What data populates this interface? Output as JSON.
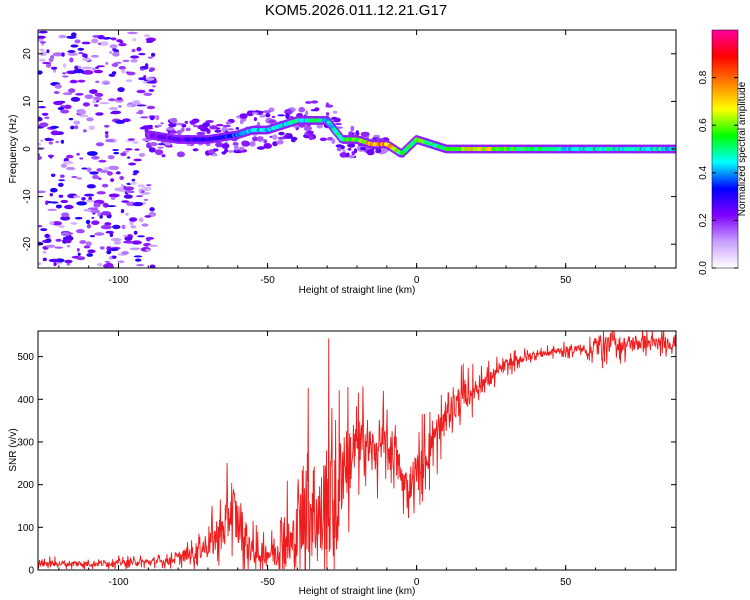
{
  "title": "KOM5.2026.011.12.21.G17",
  "chart_data": [
    {
      "type": "heatmap",
      "name": "spectrogram",
      "xlabel": "Height of straight line (km)",
      "ylabel": "Frequency (Hz)",
      "xlim": [
        -127,
        87
      ],
      "ylim": [
        -25,
        25
      ],
      "xticks": [
        -100,
        -50,
        0,
        50
      ],
      "yticks": [
        20,
        10,
        0,
        -10,
        -20
      ],
      "xtick_labels": [
        "-100",
        "-50",
        "0",
        "50"
      ],
      "ytick_labels": [
        "20",
        "10",
        "0",
        "-10",
        "-20"
      ],
      "colorbar": {
        "label": "Normalized spectral amplitude",
        "range": [
          0,
          1
        ],
        "ticks": [
          0.0,
          0.2,
          0.4,
          0.6,
          0.8
        ],
        "tick_labels": [
          "0.0",
          "0.2",
          "0.4",
          "0.6",
          "0.8"
        ],
        "colors": [
          "#ffffff",
          "#c8a0ff",
          "#8000ff",
          "#0000ff",
          "#00ffff",
          "#00ff00",
          "#ffff00",
          "#ff8000",
          "#ff0000",
          "#ff00a0"
        ]
      },
      "ridge": {
        "description": "dominant frequency trace (Hz) vs height (km)",
        "x": [
          -90,
          -80,
          -70,
          -60,
          -55,
          -50,
          -45,
          -40,
          -35,
          -30,
          -25,
          -20,
          -15,
          -10,
          -5,
          0,
          5,
          10,
          20,
          30,
          40,
          50,
          60,
          70,
          80,
          87
        ],
        "y": [
          3,
          2,
          2,
          3,
          4,
          4,
          5,
          6,
          6,
          6,
          2,
          2,
          1,
          1,
          -1,
          2,
          1,
          0,
          0,
          0,
          0,
          0,
          0,
          0,
          0,
          0
        ],
        "amplitude": [
          0.2,
          0.25,
          0.3,
          0.35,
          0.4,
          0.45,
          0.45,
          0.45,
          0.5,
          0.45,
          0.5,
          0.55,
          0.75,
          0.75,
          0.5,
          0.6,
          0.5,
          0.5,
          0.7,
          0.55,
          0.5,
          0.45,
          0.45,
          0.45,
          0.45,
          0.45
        ]
      },
      "noise_region_x": [
        -127,
        -88
      ],
      "noise_level": 0.15
    },
    {
      "type": "line",
      "name": "snr",
      "xlabel": "Height of straight line (km)",
      "ylabel": "SNR (v/v)",
      "xlim": [
        -127,
        87
      ],
      "ylim": [
        0,
        560
      ],
      "xticks": [
        -100,
        -50,
        0,
        50
      ],
      "yticks": [
        0,
        100,
        200,
        300,
        400,
        500
      ],
      "xtick_labels": [
        "-100",
        "-50",
        "0",
        "50"
      ],
      "ytick_labels": [
        "0",
        "100",
        "200",
        "300",
        "400",
        "500"
      ],
      "color": "#ee1c1c",
      "series": [
        {
          "name": "SNR",
          "x": [
            -127,
            -110,
            -95,
            -85,
            -80,
            -75,
            -70,
            -65,
            -62,
            -60,
            -57,
            -54,
            -50,
            -47,
            -45,
            -42,
            -40,
            -37,
            -35,
            -32,
            -30,
            -27,
            -25,
            -22,
            -20,
            -17,
            -15,
            -12,
            -10,
            -7,
            -5,
            -3,
            0,
            3,
            5,
            8,
            10,
            15,
            20,
            25,
            30,
            35,
            40,
            45,
            50,
            55,
            57,
            60,
            65,
            70,
            75,
            80,
            87
          ],
          "y": [
            15,
            15,
            18,
            20,
            28,
            40,
            60,
            90,
            150,
            110,
            70,
            40,
            40,
            45,
            80,
            55,
            75,
            180,
            150,
            110,
            200,
            130,
            250,
            270,
            280,
            300,
            275,
            295,
            285,
            270,
            210,
            195,
            230,
            270,
            300,
            330,
            360,
            400,
            430,
            450,
            480,
            495,
            505,
            510,
            515,
            520,
            510,
            525,
            530,
            528,
            533,
            530,
            532
          ]
        }
      ],
      "noise_amplitude": [
        8,
        8,
        8,
        10,
        14,
        20,
        35,
        55,
        70,
        60,
        50,
        30,
        30,
        45,
        80,
        70,
        90,
        160,
        140,
        120,
        180,
        140,
        110,
        90,
        80,
        70,
        60,
        60,
        60,
        55,
        45,
        40,
        50,
        55,
        55,
        50,
        45,
        40,
        30,
        20,
        15,
        12,
        10,
        10,
        10,
        10,
        10,
        30,
        25,
        22,
        20,
        18,
        18
      ]
    }
  ]
}
